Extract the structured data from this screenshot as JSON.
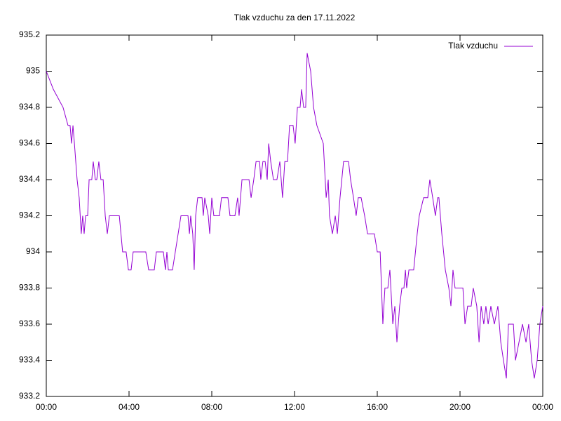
{
  "chart_data": {
    "type": "line",
    "title": "Tlak vzduchu za den 17.11.2022",
    "x": [
      0,
      0.34,
      0.81,
      1.05,
      1.15,
      1.22,
      1.29,
      1.36,
      1.49,
      1.59,
      1.69,
      1.76,
      1.83,
      1.9,
      2.0,
      2.07,
      2.2,
      2.27,
      2.37,
      2.44,
      2.54,
      2.64,
      2.75,
      2.85,
      2.95,
      3.05,
      3.53,
      3.69,
      3.86,
      3.97,
      4.1,
      4.2,
      4.81,
      4.95,
      5.22,
      5.32,
      5.66,
      5.76,
      5.83,
      5.9,
      6.1,
      6.51,
      6.85,
      6.92,
      6.98,
      7.08,
      7.15,
      7.22,
      7.32,
      7.53,
      7.59,
      7.66,
      7.83,
      7.9,
      8.0,
      8.1,
      8.37,
      8.47,
      8.78,
      8.88,
      9.12,
      9.25,
      9.32,
      9.46,
      9.8,
      9.9,
      10.03,
      10.14,
      10.31,
      10.37,
      10.47,
      10.58,
      10.68,
      10.75,
      10.85,
      10.98,
      11.15,
      11.29,
      11.42,
      11.53,
      11.66,
      11.76,
      11.93,
      12.03,
      12.14,
      12.27,
      12.34,
      12.44,
      12.54,
      12.61,
      12.78,
      12.92,
      13.08,
      13.39,
      13.53,
      13.63,
      13.69,
      13.83,
      13.97,
      14.07,
      14.2,
      14.37,
      14.61,
      14.71,
      14.85,
      14.98,
      15.08,
      15.22,
      15.39,
      15.53,
      15.86,
      16.0,
      16.14,
      16.27,
      16.37,
      16.51,
      16.61,
      16.75,
      16.85,
      16.95,
      17.08,
      17.19,
      17.29,
      17.36,
      17.42,
      17.53,
      17.76,
      17.93,
      18.03,
      18.24,
      18.44,
      18.54,
      18.68,
      18.81,
      18.92,
      18.98,
      19.12,
      19.29,
      19.46,
      19.56,
      19.66,
      19.76,
      20.14,
      20.24,
      20.37,
      20.54,
      20.64,
      20.81,
      20.92,
      21.02,
      21.15,
      21.25,
      21.36,
      21.49,
      21.66,
      21.83,
      21.97,
      22.1,
      22.24,
      22.34,
      22.58,
      22.68,
      22.85,
      23.02,
      23.19,
      23.32,
      23.46,
      23.59,
      23.73,
      23.86,
      24.0
    ],
    "series": [
      {
        "name": "Tlak vzduchu",
        "color": "#9400d3",
        "values": [
          935.0,
          934.9,
          934.8,
          934.7,
          934.7,
          934.6,
          934.7,
          934.6,
          934.4,
          934.3,
          934.1,
          934.2,
          934.1,
          934.2,
          934.2,
          934.4,
          934.4,
          934.5,
          934.4,
          934.4,
          934.5,
          934.4,
          934.4,
          934.2,
          934.1,
          934.2,
          934.2,
          934.0,
          934.0,
          933.9,
          933.9,
          934.0,
          934.0,
          933.9,
          933.9,
          934.0,
          934.0,
          933.9,
          934.0,
          933.9,
          933.9,
          934.2,
          934.2,
          934.1,
          934.2,
          934.1,
          933.9,
          934.2,
          934.3,
          934.3,
          934.2,
          934.3,
          934.2,
          934.1,
          934.3,
          934.2,
          934.2,
          934.3,
          934.3,
          934.2,
          934.2,
          934.3,
          934.2,
          934.4,
          934.4,
          934.3,
          934.4,
          934.5,
          934.5,
          934.4,
          934.5,
          934.5,
          934.4,
          934.6,
          934.5,
          934.4,
          934.4,
          934.5,
          934.3,
          934.5,
          934.5,
          934.7,
          934.7,
          934.6,
          934.8,
          934.8,
          934.9,
          934.8,
          934.8,
          935.1,
          935.0,
          934.8,
          934.7,
          934.6,
          934.3,
          934.4,
          934.2,
          934.1,
          934.2,
          934.1,
          934.3,
          934.5,
          934.5,
          934.4,
          934.3,
          934.2,
          934.3,
          934.3,
          934.2,
          934.1,
          934.1,
          934.0,
          934.0,
          933.6,
          933.8,
          933.8,
          933.9,
          933.6,
          933.7,
          933.5,
          933.7,
          933.8,
          933.8,
          933.9,
          933.8,
          933.9,
          933.9,
          934.1,
          934.2,
          934.3,
          934.3,
          934.4,
          934.3,
          934.2,
          934.3,
          934.3,
          934.1,
          933.9,
          933.8,
          933.7,
          933.9,
          933.8,
          933.8,
          933.6,
          933.7,
          933.7,
          933.8,
          933.7,
          933.5,
          933.7,
          933.6,
          933.7,
          933.6,
          933.7,
          933.6,
          933.7,
          933.5,
          933.4,
          933.3,
          933.6,
          933.6,
          933.4,
          933.5,
          933.6,
          933.5,
          933.6,
          933.4,
          933.3,
          933.4,
          933.6,
          933.7
        ]
      }
    ],
    "xlim": [
      0,
      24
    ],
    "xticks": [
      {
        "value": 0,
        "label": "00:00"
      },
      {
        "value": 4,
        "label": "04:00"
      },
      {
        "value": 8,
        "label": "08:00"
      },
      {
        "value": 12,
        "label": "12:00"
      },
      {
        "value": 16,
        "label": "16:00"
      },
      {
        "value": 20,
        "label": "20:00"
      },
      {
        "value": 24,
        "label": "00:00"
      }
    ],
    "ylim": [
      933.2,
      935.2
    ],
    "yticks": [
      933.2,
      933.4,
      933.6,
      933.8,
      934,
      934.2,
      934.4,
      934.6,
      934.8,
      935,
      935.2
    ],
    "grid": false,
    "legend": "top-right"
  }
}
